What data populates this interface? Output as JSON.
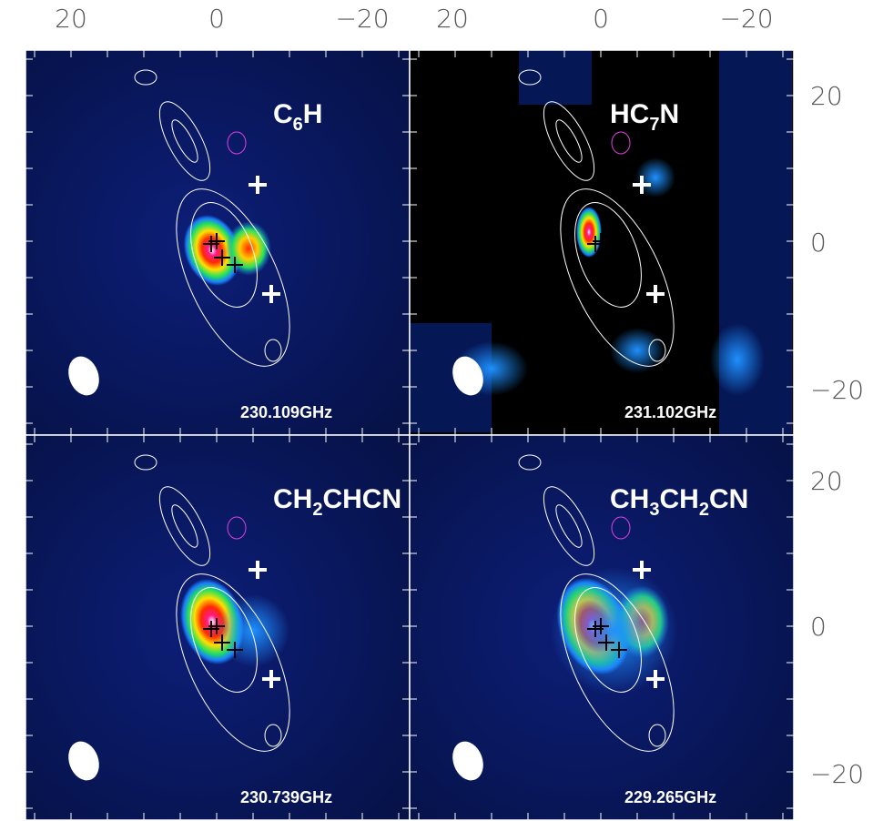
{
  "axes": {
    "top_ticks": [
      "20",
      "0",
      "−20"
    ],
    "right_ticks": [
      "20",
      "0",
      "−20"
    ]
  },
  "panels": [
    {
      "label": [
        {
          "text": "C"
        },
        {
          "text": "6",
          "sub": true
        },
        {
          "text": "H"
        }
      ],
      "frequency": "230.109GHz"
    },
    {
      "label": [
        {
          "text": "HC"
        },
        {
          "text": "7",
          "sub": true
        },
        {
          "text": "N"
        }
      ],
      "frequency": "231.102GHz"
    },
    {
      "label": [
        {
          "text": "CH"
        },
        {
          "text": "2",
          "sub": true
        },
        {
          "text": "CHCN"
        }
      ],
      "frequency": "230.739GHz"
    },
    {
      "label": [
        {
          "text": "CH"
        },
        {
          "text": "3",
          "sub": true
        },
        {
          "text": "CH"
        },
        {
          "text": "2",
          "sub": true
        },
        {
          "text": "CN"
        }
      ],
      "frequency": "229.265GHz"
    }
  ]
}
